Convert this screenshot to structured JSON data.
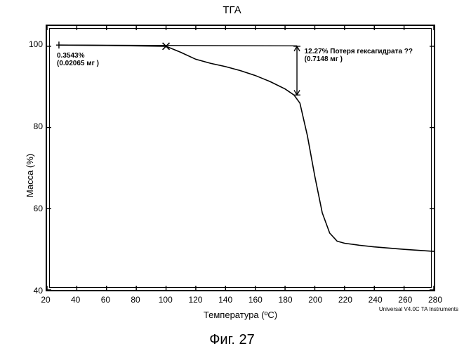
{
  "chart": {
    "type": "line",
    "title": "ТГА",
    "title_fontsize": 15,
    "caption": "Фиг. 27",
    "caption_fontsize": 20,
    "xlabel": "Температура (ºC)",
    "ylabel": "Масса (%)",
    "label_fontsize": 13,
    "tick_fontsize": 12,
    "background_color": "#ffffff",
    "axis_color": "#000000",
    "line_color": "#000000",
    "line_width": 1.5,
    "xlim": [
      20,
      280
    ],
    "ylim": [
      40,
      105
    ],
    "xticks": [
      20,
      40,
      60,
      80,
      100,
      120,
      140,
      160,
      180,
      200,
      220,
      240,
      260,
      280
    ],
    "yticks": [
      40,
      60,
      80,
      100
    ],
    "series": {
      "x": [
        28,
        60,
        100,
        110,
        120,
        130,
        140,
        150,
        160,
        170,
        180,
        186,
        190,
        195,
        200,
        205,
        210,
        215,
        220,
        230,
        240,
        260,
        280
      ],
      "mass": [
        100.3,
        100.2,
        100.0,
        98.5,
        96.8,
        95.8,
        95.0,
        94.0,
        92.8,
        91.3,
        89.5,
        88.0,
        86.0,
        78.0,
        68.0,
        59.0,
        54.0,
        52.0,
        51.5,
        51.0,
        50.6,
        50.0,
        49.5
      ]
    },
    "plateau": {
      "x": [
        28,
        188
      ],
      "mass": [
        100.3,
        100.1
      ]
    },
    "markers": {
      "start_tick_x": 28,
      "x_marker_x": 100,
      "drop_arrow_x": 188,
      "drop_arrow_top_y": 100.0,
      "drop_arrow_bot_y": 88.0
    },
    "annotations": {
      "a1_line1": "0.3543%",
      "a1_line2": "(0.02065 мг )",
      "a1_fontsize": 10,
      "a1_bold": true,
      "a2_line1": "12.27% Потеря гексагидрата ??",
      "a2_line2": "(0.7148 мг )",
      "a2_fontsize": 10,
      "a2_bold": true
    },
    "watermark": "Universal V4.0C TA Instruments",
    "watermark_fontsize": 8
  }
}
